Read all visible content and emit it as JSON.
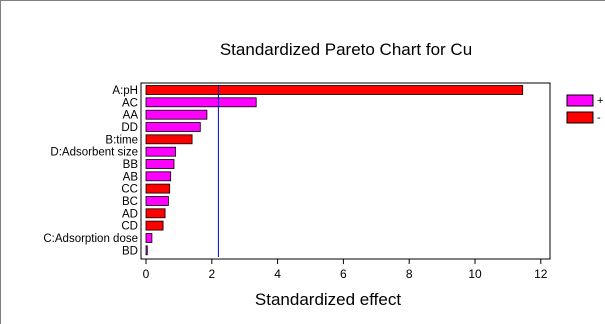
{
  "chart_data": {
    "type": "bar",
    "orientation": "horizontal",
    "title": "Standardized Pareto Chart for Cu",
    "xlabel": "Standardized effect",
    "ylabel": "",
    "xlim": [
      0,
      12.5
    ],
    "x_ticks": [
      "0",
      "2",
      "4",
      "6",
      "8",
      "10",
      "12"
    ],
    "categories": [
      "A:pH",
      "AC",
      "AA",
      "DD",
      "B:time",
      "D:Adsorbent size",
      "BB",
      "AB",
      "CC",
      "BC",
      "AD",
      "CD",
      "C:Adsorption dose",
      "BD"
    ],
    "values": [
      11.45,
      3.35,
      1.85,
      1.65,
      1.4,
      0.9,
      0.85,
      0.75,
      0.72,
      0.68,
      0.58,
      0.52,
      0.18,
      0.04
    ],
    "signs": [
      "-",
      "+",
      "+",
      "+",
      "-",
      "+",
      "+",
      "+",
      "-",
      "+",
      "-",
      "-",
      "+",
      "+"
    ],
    "reference_line": 2.2,
    "legend": [
      {
        "label": "+",
        "color": "#ff00ff"
      },
      {
        "label": "-",
        "color": "#ff0000"
      }
    ],
    "legend_position": "right",
    "grid": false,
    "colors": {
      "positive": "#ff00ff",
      "negative": "#ff0000",
      "reference_line": "#0000cc"
    }
  }
}
